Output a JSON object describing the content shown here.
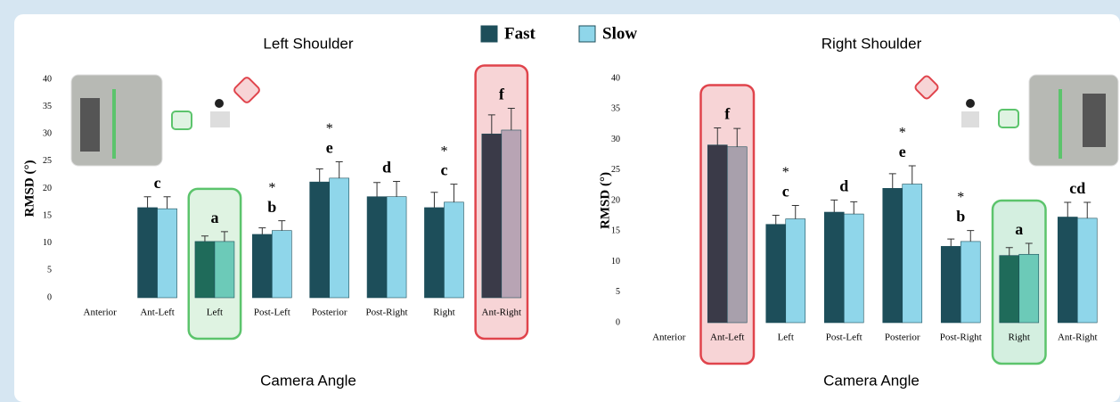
{
  "chart_data": [
    {
      "type": "bar",
      "title": "Left Shoulder",
      "x_label": "Camera Angle",
      "y_label": "RMSD (°)",
      "categories": [
        "Anterior",
        "Ant-Left",
        "Left",
        "Post-Left",
        "Posterior",
        "Post-Right",
        "Right",
        "Ant-Right"
      ],
      "series": [
        {
          "name": "Fast",
          "color": "#1d4e5a",
          "values": [
            null,
            16.5,
            10.3,
            11.6,
            21.2,
            18.5,
            16.5,
            30.0
          ],
          "errors": [
            null,
            2.0,
            1.0,
            1.2,
            2.4,
            2.6,
            2.8,
            3.5
          ]
        },
        {
          "name": "Slow",
          "color": "#8fd6ea",
          "values": [
            null,
            16.3,
            10.3,
            12.3,
            21.9,
            18.5,
            17.5,
            30.7
          ],
          "errors": [
            null,
            2.2,
            1.8,
            1.8,
            3.0,
            2.8,
            3.3,
            4.0
          ]
        }
      ],
      "group_labels": [
        null,
        "c",
        "a",
        "b",
        "e",
        "d",
        "c",
        "f"
      ],
      "significance": [
        null,
        null,
        null,
        "*",
        "*",
        null,
        "*",
        null
      ],
      "highlights": [
        {
          "category": "Left",
          "color": "#5cc46c",
          "fill": "#dff3e2",
          "bar_colors": [
            "#1f6b5a",
            "#6ccab8"
          ]
        },
        {
          "category": "Ant-Right",
          "color": "#e0444c",
          "fill": "#f7d4d6",
          "bar_colors": [
            "#3a3a48",
            "#b8a4b4"
          ]
        }
      ],
      "ylim": [
        0,
        40
      ],
      "yticks": [
        0,
        5,
        10,
        15,
        20,
        25,
        30,
        35,
        40
      ],
      "grid": false
    },
    {
      "type": "bar",
      "title": "Right Shoulder",
      "x_label": "Camera Angle",
      "y_label": "RMSD (°)",
      "categories": [
        "Anterior",
        "Ant-Left",
        "Left",
        "Post-Left",
        "Posterior",
        "Post-Right",
        "Right",
        "Ant-Right"
      ],
      "series": [
        {
          "name": "Fast",
          "color": "#1d4e5a",
          "values": [
            null,
            29.1,
            16.1,
            18.1,
            22.0,
            12.5,
            11.0,
            17.3
          ],
          "errors": [
            null,
            2.8,
            1.5,
            2.0,
            2.4,
            1.2,
            1.3,
            2.4
          ]
        },
        {
          "name": "Slow",
          "color": "#8fd6ea",
          "values": [
            null,
            28.8,
            17.0,
            17.8,
            22.7,
            13.3,
            11.2,
            17.1
          ],
          "errors": [
            null,
            3.0,
            2.2,
            2.0,
            3.0,
            1.8,
            1.8,
            2.6
          ]
        }
      ],
      "group_labels": [
        null,
        "f",
        "c",
        "d",
        "e",
        "b",
        "a",
        "cd"
      ],
      "significance": [
        null,
        null,
        "*",
        null,
        "*",
        "*",
        null,
        null
      ],
      "highlights": [
        {
          "category": "Ant-Left",
          "color": "#e0444c",
          "fill": "#f7d4d6",
          "bar_colors": [
            "#3a3a48",
            "#a8a0ac"
          ]
        },
        {
          "category": "Right",
          "color": "#5cc46c",
          "fill": "#d4efe0",
          "bar_colors": [
            "#1f6b5a",
            "#6ccab8"
          ]
        }
      ],
      "ylim": [
        0,
        40
      ],
      "yticks": [
        0,
        5,
        10,
        15,
        20,
        25,
        30,
        35,
        40
      ],
      "grid": false
    }
  ]
}
